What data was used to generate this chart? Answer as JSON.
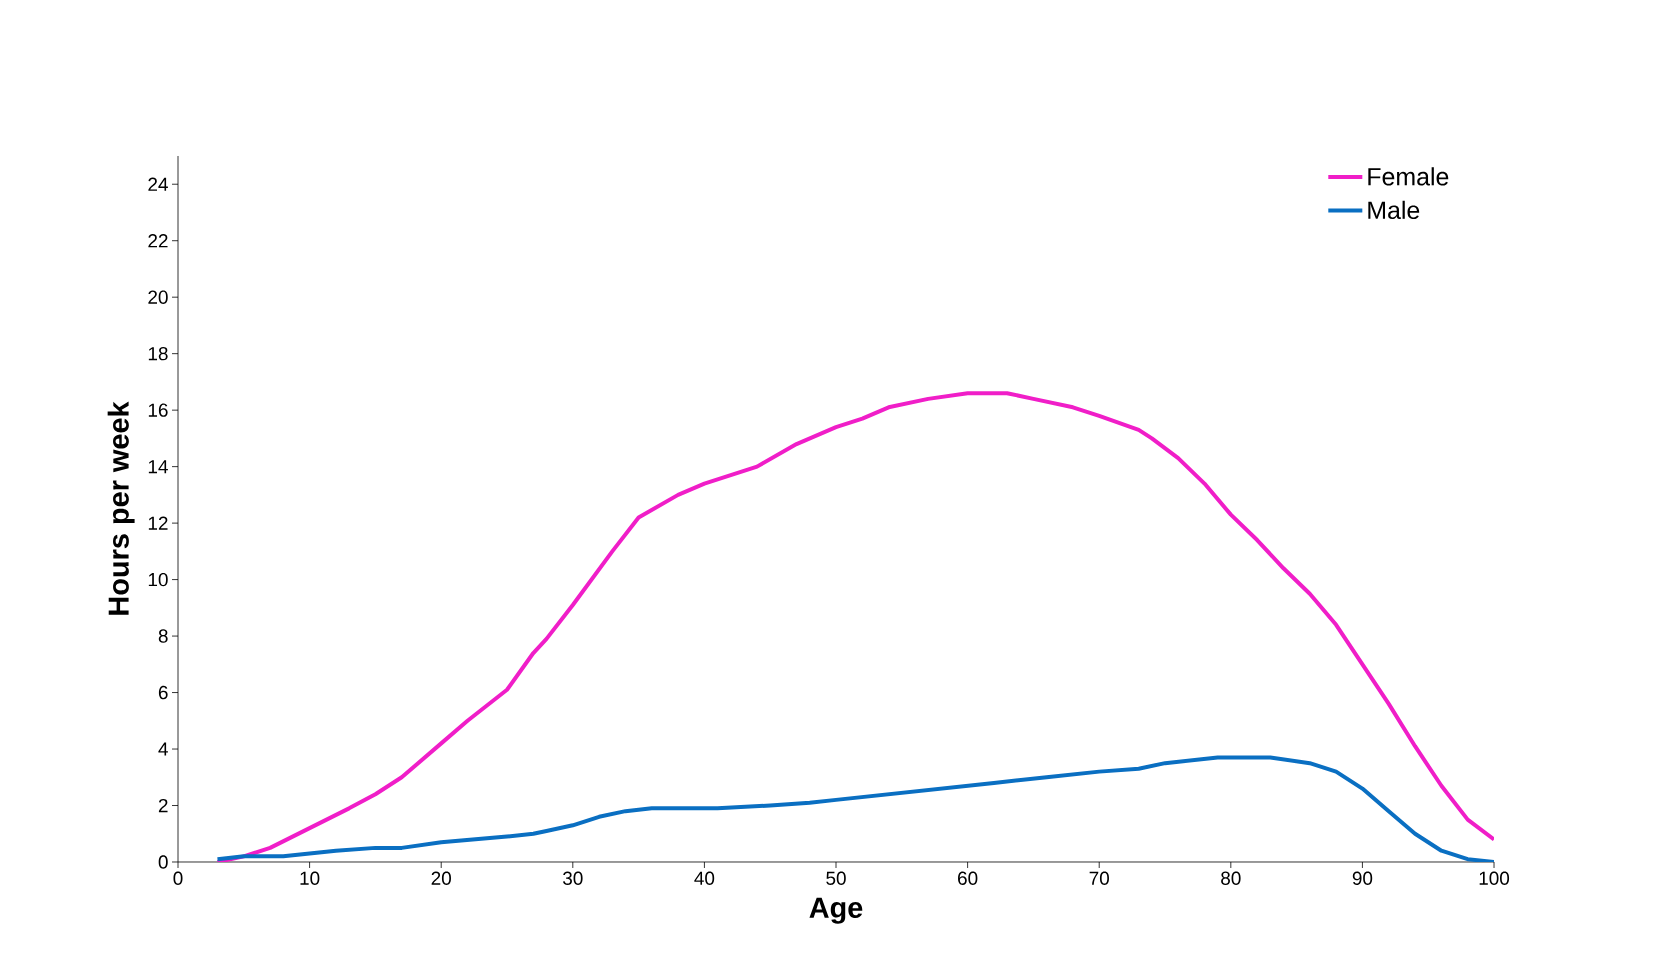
{
  "chart_data": {
    "type": "line",
    "xlabel": "Age",
    "ylabel": "Hours per week",
    "xlim": [
      0,
      100
    ],
    "ylim": [
      0,
      25
    ],
    "xticks": [
      0,
      10,
      20,
      30,
      40,
      50,
      60,
      70,
      80,
      90,
      100
    ],
    "yticks": [
      0,
      2,
      4,
      6,
      8,
      10,
      12,
      14,
      16,
      18,
      20,
      22,
      24
    ],
    "grid": false,
    "legend": "top right",
    "marker": "none",
    "line_style": "solid",
    "series": [
      {
        "name": "Female",
        "color": "#f01ec8",
        "x": [
          3,
          5,
          7,
          10,
          13,
          15,
          17,
          20,
          22,
          25,
          27,
          28,
          30,
          33,
          35,
          38,
          40,
          42,
          44,
          47,
          50,
          52,
          54,
          57,
          60,
          61,
          63,
          65,
          68,
          70,
          73,
          74,
          76,
          78,
          80,
          82,
          84,
          86,
          88,
          90,
          92,
          94,
          96,
          98,
          100
        ],
        "values": [
          0,
          0.2,
          0.5,
          1.2,
          1.9,
          2.4,
          3.0,
          4.2,
          5.0,
          6.1,
          7.4,
          7.9,
          9.1,
          11.0,
          12.2,
          13.0,
          13.4,
          13.7,
          14.0,
          14.8,
          15.4,
          15.7,
          16.1,
          16.4,
          16.6,
          16.6,
          16.6,
          16.4,
          16.1,
          15.8,
          15.3,
          15.0,
          14.3,
          13.4,
          12.3,
          11.4,
          10.4,
          9.5,
          8.4,
          7.0,
          5.6,
          4.1,
          2.7,
          1.5,
          0.8
        ]
      },
      {
        "name": "Male",
        "color": "#0a6fc2",
        "x": [
          3,
          5,
          8,
          10,
          12,
          15,
          17,
          20,
          25,
          27,
          28,
          30,
          32,
          34,
          36,
          41,
          45,
          48,
          50,
          54,
          58,
          62,
          66,
          70,
          73,
          75,
          79,
          83,
          86,
          88,
          90,
          92,
          94,
          96,
          98,
          100
        ],
        "values": [
          0.1,
          0.2,
          0.2,
          0.3,
          0.4,
          0.5,
          0.5,
          0.7,
          0.9,
          1.0,
          1.1,
          1.3,
          1.6,
          1.8,
          1.9,
          1.9,
          2.0,
          2.1,
          2.2,
          2.4,
          2.6,
          2.8,
          3.0,
          3.2,
          3.3,
          3.5,
          3.7,
          3.7,
          3.5,
          3.2,
          2.6,
          1.8,
          1.0,
          0.4,
          0.1,
          0.0
        ]
      }
    ]
  }
}
